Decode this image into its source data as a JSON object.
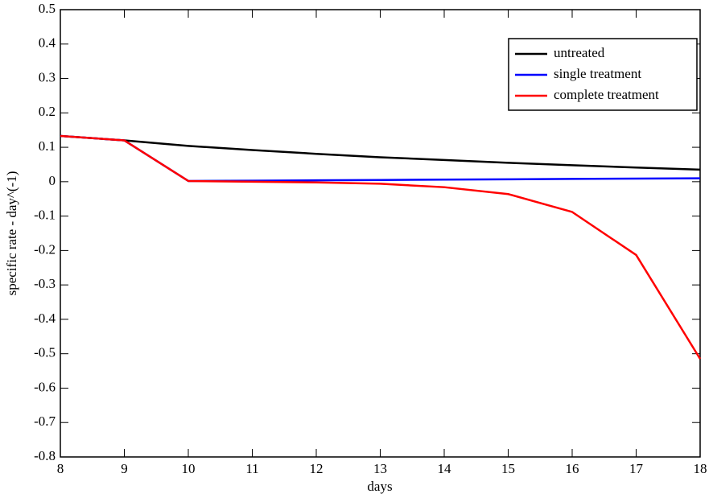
{
  "chart_data": {
    "type": "line",
    "x_label": "days",
    "y_label": "specific rate - day^(-1)",
    "x": [
      8,
      9,
      10,
      11,
      12,
      13,
      14,
      15,
      16,
      17,
      18
    ],
    "series": [
      {
        "name": "untreated",
        "color": "#000000",
        "values": [
          0.133,
          0.12,
          0.104,
          0.092,
          0.081,
          0.071,
          0.063,
          0.055,
          0.048,
          0.041,
          0.035
        ]
      },
      {
        "name": "single treatment",
        "color": "#0000ff",
        "values": [
          0.133,
          0.12,
          0.002,
          0.003,
          0.004,
          0.005,
          0.006,
          0.007,
          0.008,
          0.009,
          0.01
        ]
      },
      {
        "name": "complete treatment",
        "color": "#ff0000",
        "values": [
          0.133,
          0.12,
          0.002,
          0.0,
          -0.002,
          -0.006,
          -0.016,
          -0.036,
          -0.088,
          -0.213,
          -0.515
        ]
      }
    ],
    "xlim": [
      8,
      18
    ],
    "xticks": [
      8,
      9,
      10,
      11,
      12,
      13,
      14,
      15,
      16,
      17,
      18
    ],
    "ylim": [
      -0.8,
      0.5
    ],
    "yticks": [
      0.5,
      0.4,
      0.3,
      0.2,
      0.1,
      0,
      -0.1,
      -0.2,
      -0.3,
      -0.4,
      -0.5,
      -0.6,
      -0.7,
      -0.8
    ],
    "grid": false,
    "legend_position": "upper-right"
  }
}
